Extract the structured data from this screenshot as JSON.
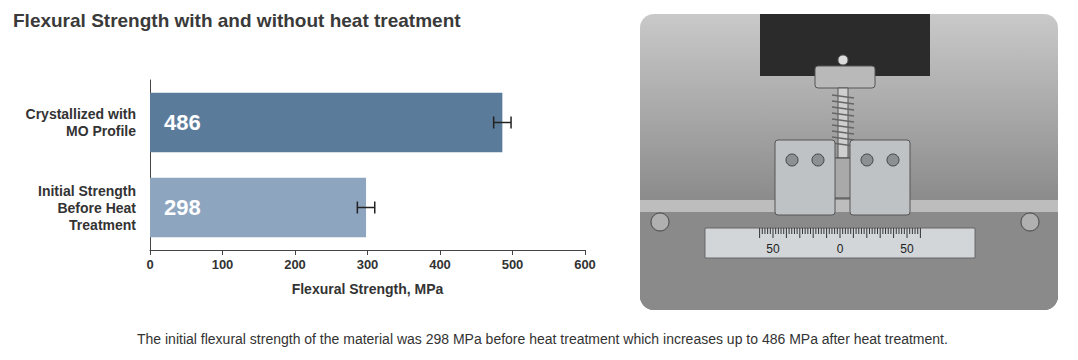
{
  "chart_data": {
    "type": "bar",
    "title": "Flexural Strength with and without heat treatment",
    "orientation": "horizontal",
    "categories": [
      "Crystallized with\nMO Profile",
      "Initial Strength\nBefore Heat\nTreatment"
    ],
    "values": [
      486,
      298
    ],
    "errors": [
      12,
      12
    ],
    "colors": [
      "#5b7b9b",
      "#8ea5c0"
    ],
    "xlabel": "Flexural Strength, MPa",
    "xlim": [
      0,
      600
    ],
    "xticks": [
      0,
      100,
      200,
      300,
      400,
      500,
      600
    ],
    "data_labels": true,
    "grid": false,
    "caption": "The initial flexural strength of the material was 298 MPa before heat treatment which increases up to 486 MPa after heat treatment."
  },
  "image": {
    "scale_labels": [
      50,
      0,
      50
    ]
  }
}
